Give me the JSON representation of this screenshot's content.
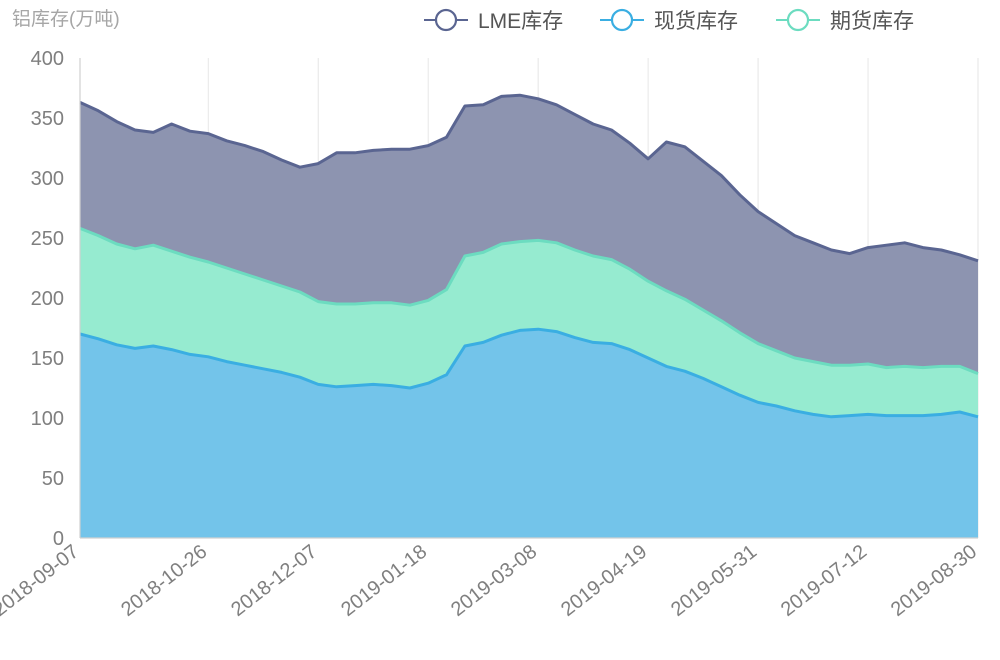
{
  "chart_data": {
    "type": "area",
    "ylabel": "铝库存(万吨)",
    "ylim": [
      0,
      400
    ],
    "yticks": [
      0,
      50,
      100,
      150,
      200,
      250,
      300,
      350,
      400
    ],
    "xtick_labels": [
      "2018-09-07",
      "2018-10-26",
      "2018-12-07",
      "2019-01-18",
      "2019-03-08",
      "2019-04-19",
      "2019-05-31",
      "2019-07-12",
      "2019-08-30"
    ],
    "xtick_index": [
      0,
      7,
      13,
      19,
      25,
      31,
      37,
      43,
      49
    ],
    "grid": true,
    "legend_position": "top-right",
    "series": [
      {
        "name": "LME库存",
        "line_color": "#5a6591",
        "fill_color": "#8d94b0",
        "values": [
          363,
          356,
          347,
          340,
          338,
          345,
          339,
          337,
          331,
          327,
          322,
          315,
          309,
          312,
          321,
          321,
          323,
          324,
          324,
          327,
          334,
          360,
          361,
          368,
          369,
          366,
          361,
          353,
          345,
          340,
          329,
          316,
          330,
          326,
          314,
          302,
          286,
          272,
          262,
          252,
          246,
          240,
          237,
          242,
          244,
          246,
          242,
          240,
          236,
          231
        ]
      },
      {
        "name": "现货库存",
        "line_color": "#3aaee2",
        "fill_color": "#73c4ea",
        "values": [
          170,
          166,
          161,
          158,
          160,
          157,
          153,
          151,
          147,
          144,
          141,
          138,
          134,
          128,
          126,
          127,
          128,
          127,
          125,
          129,
          136,
          160,
          163,
          169,
          173,
          174,
          172,
          167,
          163,
          162,
          157,
          150,
          143,
          139,
          133,
          126,
          119,
          113,
          110,
          106,
          103,
          101,
          102,
          103,
          102,
          102,
          102,
          103,
          105,
          101
        ]
      },
      {
        "name": "期货库存",
        "line_color": "#6cdcc0",
        "fill_color": "#96ebd0",
        "values": [
          258,
          252,
          245,
          241,
          244,
          239,
          234,
          230,
          225,
          220,
          215,
          210,
          205,
          197,
          195,
          195,
          196,
          196,
          194,
          198,
          207,
          235,
          238,
          245,
          247,
          248,
          246,
          240,
          235,
          232,
          224,
          214,
          206,
          199,
          190,
          181,
          171,
          162,
          156,
          150,
          147,
          144,
          144,
          145,
          142,
          143,
          142,
          143,
          143,
          137
        ]
      }
    ]
  }
}
